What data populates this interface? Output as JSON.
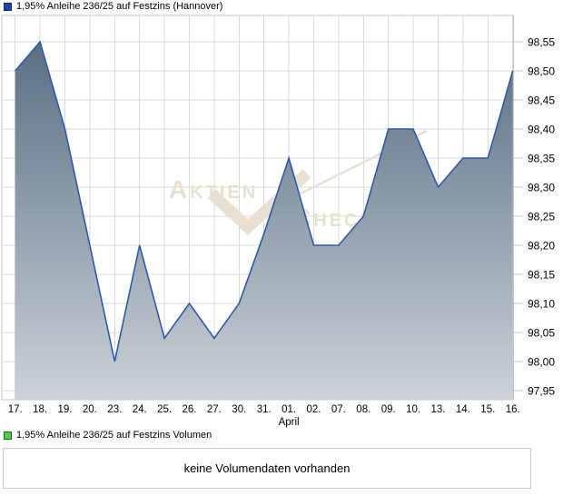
{
  "header_legend": {
    "label": "1,95% Anleihe 236/25 auf Festzins (Hannover)",
    "marker_color": "#1b44a8"
  },
  "volume_legend": {
    "label": "1,95% Anleihe 236/25 auf Festzins Volumen",
    "marker_color": "#55c855"
  },
  "volume_panel": {
    "message": "keine Volumendaten vorhanden"
  },
  "watermark": {
    "part1": "Aktien",
    "part2": "Check",
    "color": "#e8e1d3"
  },
  "chart_data": {
    "type": "area",
    "title": "1,95% Anleihe 236/25 auf Festzins (Hannover)",
    "categories": [
      "17.",
      "18.",
      "19.",
      "20.",
      "23.",
      "24.",
      "25.",
      "26.",
      "27.",
      "30.",
      "31.",
      "01.",
      "02.",
      "07.",
      "08.",
      "09.",
      "10.",
      "13.",
      "14.",
      "15.",
      "16."
    ],
    "values": [
      98.5,
      98.55,
      98.4,
      98.2,
      98.0,
      98.2,
      98.04,
      98.1,
      98.04,
      98.1,
      98.22,
      98.35,
      98.2,
      98.2,
      98.25,
      98.4,
      98.4,
      98.3,
      98.35,
      98.35,
      98.5
    ],
    "month_label": "April",
    "month_label_index": 11,
    "xlabel": "",
    "ylabel": "",
    "ylim": [
      97.95,
      98.55
    ],
    "y_tick_step": 0.05,
    "y_tick_labels": [
      "98,55",
      "98,50",
      "98,45",
      "98,40",
      "98,35",
      "98,30",
      "98,25",
      "98,20",
      "98,15",
      "98,10",
      "98,05",
      "98,00",
      "97,95"
    ],
    "grid": true,
    "legend_position": "top-left",
    "line_color": "#2d5ba6",
    "fill_top_color": "#52677d",
    "fill_bottom_color": "#ccd2d8",
    "grid_color": "#d9d9d9",
    "border_color": "#c6c6c6"
  }
}
